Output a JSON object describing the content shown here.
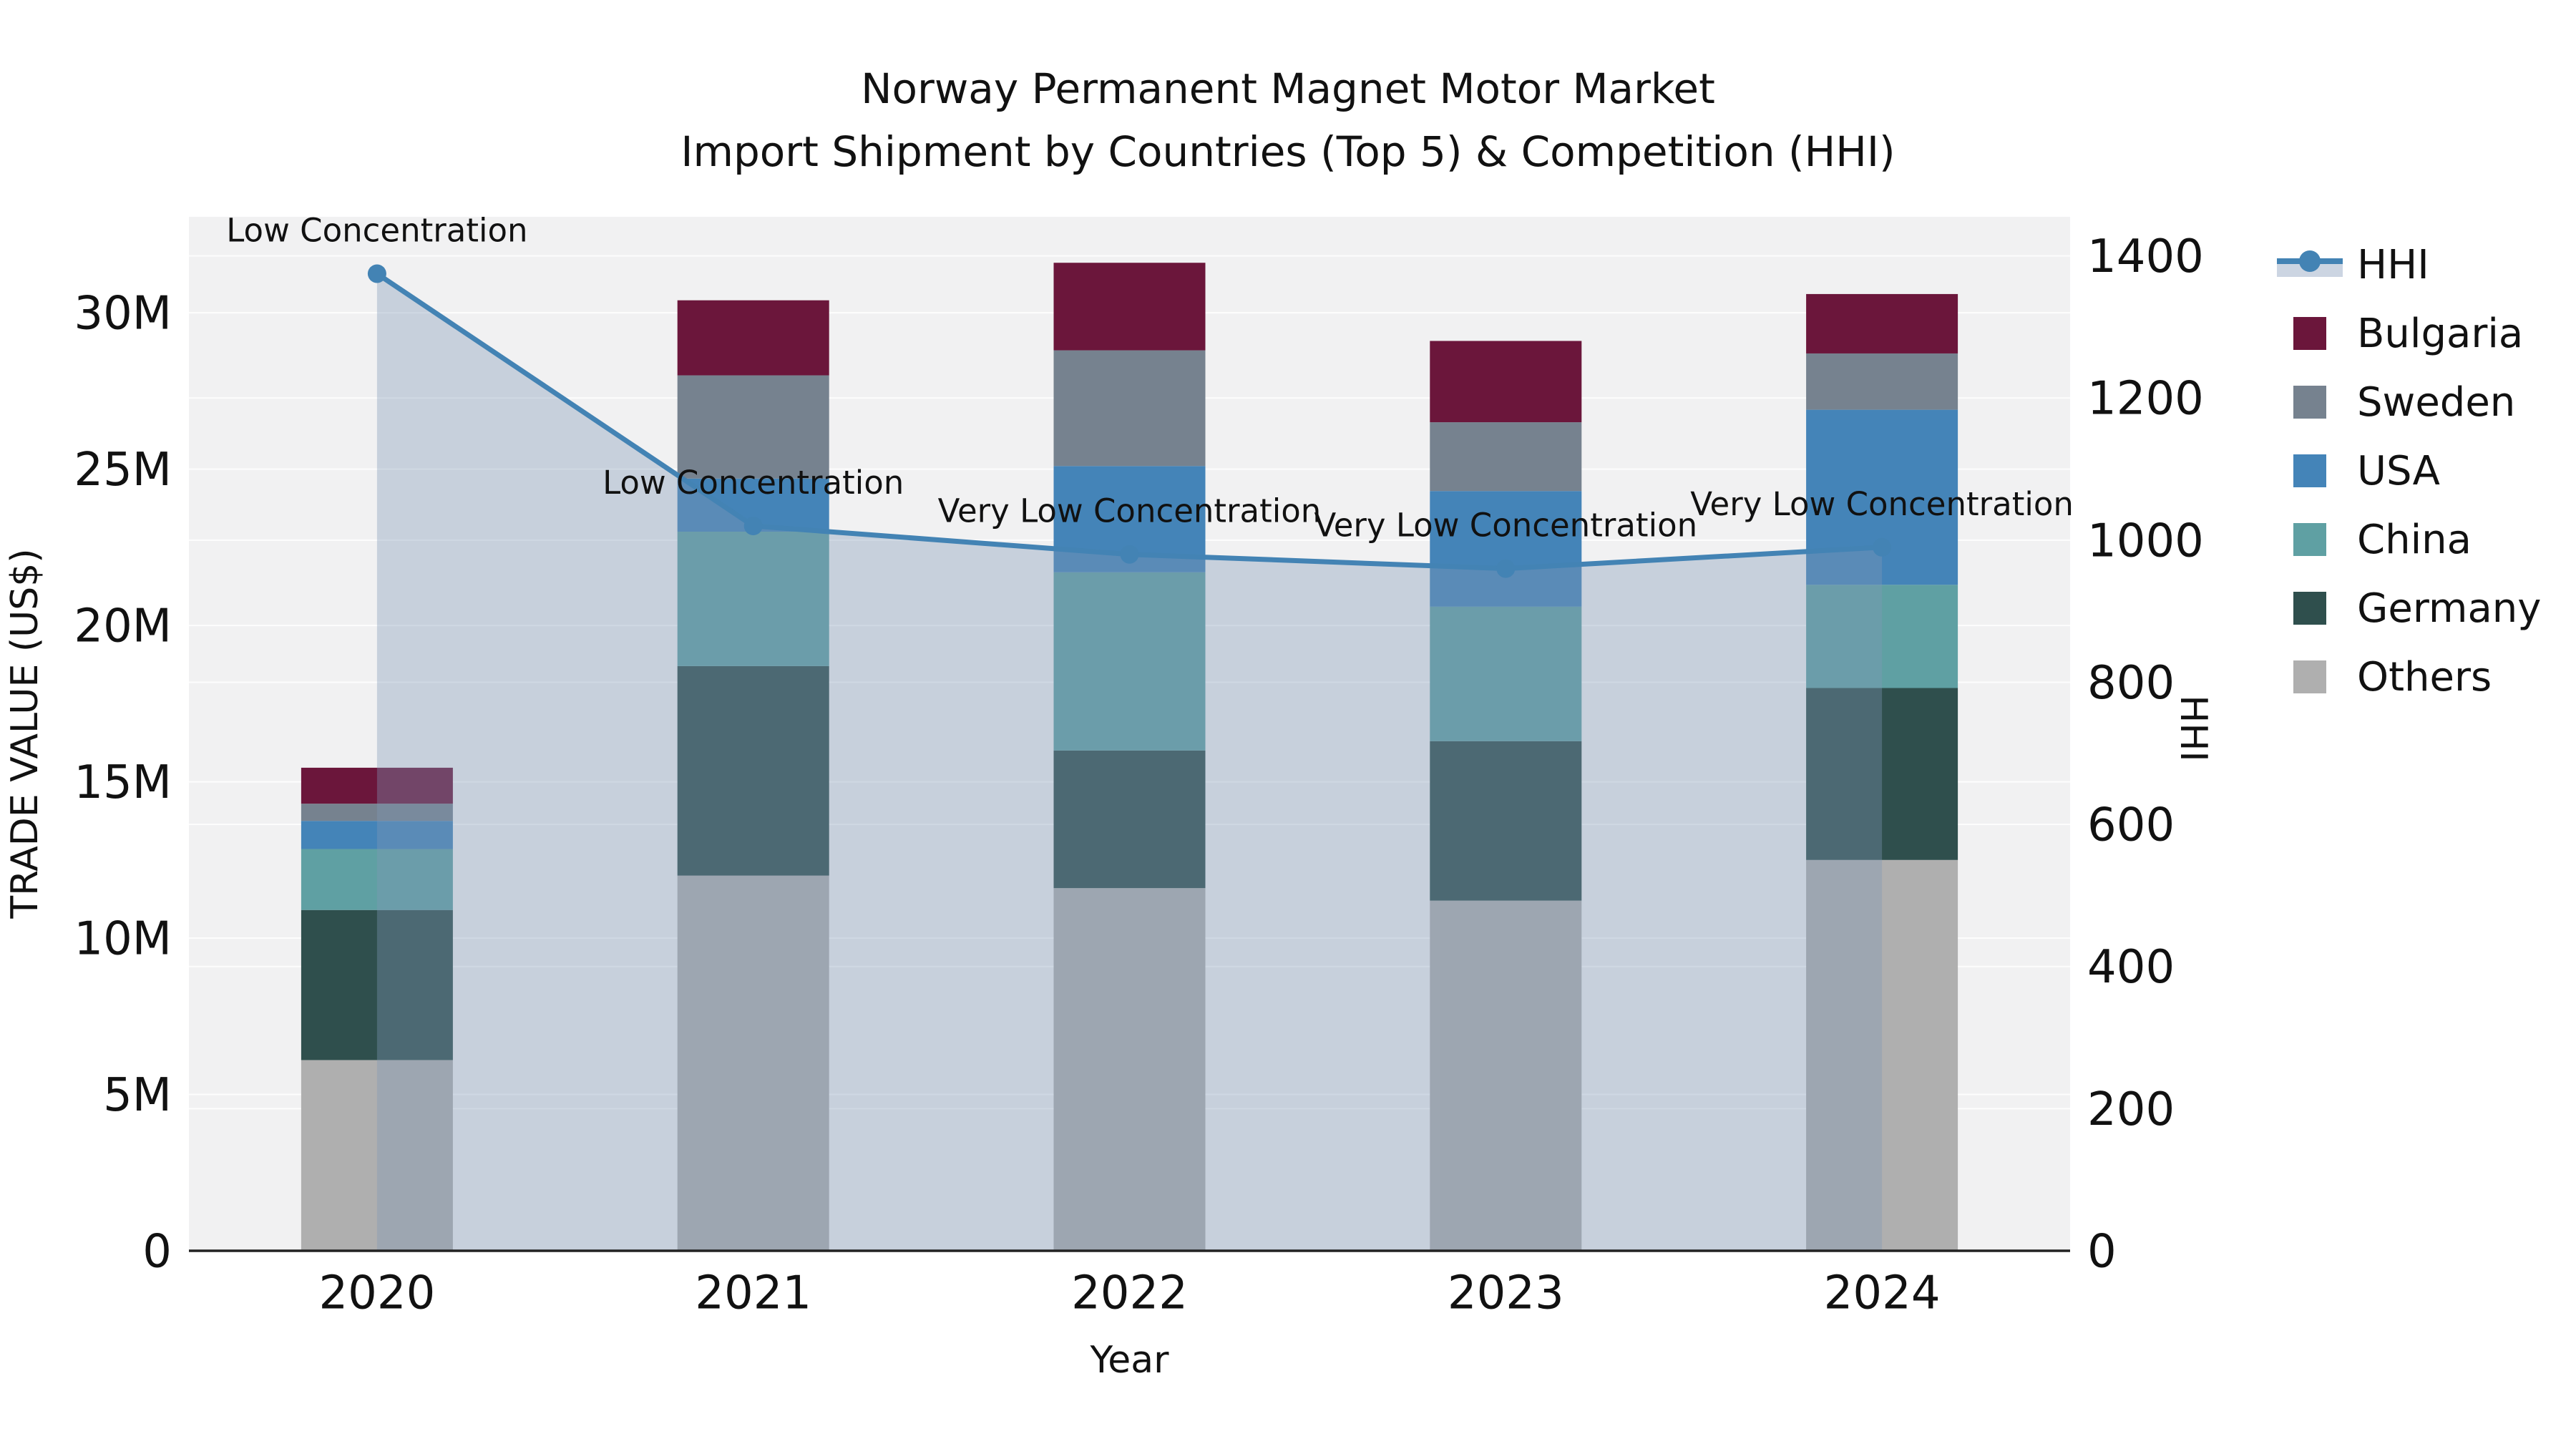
{
  "title": {
    "line1": "Norway Permanent Magnet Motor Market",
    "line2": "Import Shipment by Countries (Top 5) & Competition (HHI)"
  },
  "colors": {
    "figure_bg": "#ffffff",
    "plot_bg": "#F1F1F2",
    "grid": "rgba(255,255,255,0.85)",
    "axis_line": "#222222",
    "hhi_line": "#4383B4",
    "hhi_area": "rgba(127,152,182,0.37)",
    "hhi_legend_band": "#CCD5E2",
    "bulgaria": "#6B163B",
    "sweden": "#76828F",
    "usa": "#4484B8",
    "china": "#5FA0A3",
    "germany": "#2F4F4D",
    "others": "#AFAFAF"
  },
  "legend": {
    "items": [
      {
        "label": "HHI",
        "type": "line",
        "color": "#4383B4"
      },
      {
        "label": "Bulgaria",
        "type": "square",
        "color": "#6B163B"
      },
      {
        "label": "Sweden",
        "type": "square",
        "color": "#76828F"
      },
      {
        "label": "USA",
        "type": "square",
        "color": "#4484B8"
      },
      {
        "label": "China",
        "type": "square",
        "color": "#5FA0A3"
      },
      {
        "label": "Germany",
        "type": "square",
        "color": "#2F4F4D"
      },
      {
        "label": "Others",
        "type": "square",
        "color": "#AFAFAF"
      }
    ]
  },
  "chart_data": {
    "type": "bar",
    "subtype": "stacked-bars-with-line-area",
    "categories": [
      "2020",
      "2021",
      "2022",
      "2023",
      "2024"
    ],
    "values_unit": "M US$",
    "series": [
      {
        "name": "Others",
        "color": "#AFAFAF",
        "values": [
          6.1,
          12.0,
          11.6,
          11.2,
          12.5
        ]
      },
      {
        "name": "Germany",
        "color": "#2F4F4D",
        "values": [
          4.8,
          6.7,
          4.4,
          5.1,
          5.5
        ]
      },
      {
        "name": "China",
        "color": "#5FA0A3",
        "values": [
          1.95,
          4.3,
          5.7,
          4.3,
          3.3
        ]
      },
      {
        "name": "USA",
        "color": "#4484B8",
        "values": [
          0.9,
          1.7,
          3.4,
          3.7,
          5.6
        ]
      },
      {
        "name": "Sweden",
        "color": "#76828F",
        "values": [
          0.55,
          3.3,
          3.7,
          2.2,
          1.8
        ]
      },
      {
        "name": "Bulgaria",
        "color": "#6B163B",
        "values": [
          1.15,
          2.4,
          2.8,
          2.6,
          1.9
        ]
      }
    ],
    "bar_totals": [
      15.45,
      30.4,
      31.6,
      29.1,
      30.6
    ],
    "line_series": {
      "name": "HHI",
      "color": "#4383B4",
      "fill": "rgba(127,152,182,0.37)",
      "values": [
        1375,
        1020,
        980,
        960,
        990
      ],
      "annotations": [
        "Low Concentration",
        "Low Concentration",
        "Very Low Concentration",
        "Very Low Concentration",
        "Very Low Concentration"
      ]
    },
    "xlabel": "Year",
    "ylabel": "TRADE VALUE (US$)",
    "y2label": "HHI",
    "ylim": [
      0,
      33.07
    ],
    "y2lim": [
      0,
      1455
    ],
    "yticks": [
      {
        "v": 0,
        "label": "0"
      },
      {
        "v": 5,
        "label": "5M"
      },
      {
        "v": 10,
        "label": "10M"
      },
      {
        "v": 15,
        "label": "15M"
      },
      {
        "v": 20,
        "label": "20M"
      },
      {
        "v": 25,
        "label": "25M"
      },
      {
        "v": 30,
        "label": "30M"
      }
    ],
    "y2ticks": [
      {
        "v": 0,
        "label": "0"
      },
      {
        "v": 200,
        "label": "200"
      },
      {
        "v": 400,
        "label": "400"
      },
      {
        "v": 600,
        "label": "600"
      },
      {
        "v": 800,
        "label": "800"
      },
      {
        "v": 1000,
        "label": "1000"
      },
      {
        "v": 1200,
        "label": "1200"
      },
      {
        "v": 1400,
        "label": "1400"
      }
    ],
    "legend_position": "right",
    "grid": true
  }
}
